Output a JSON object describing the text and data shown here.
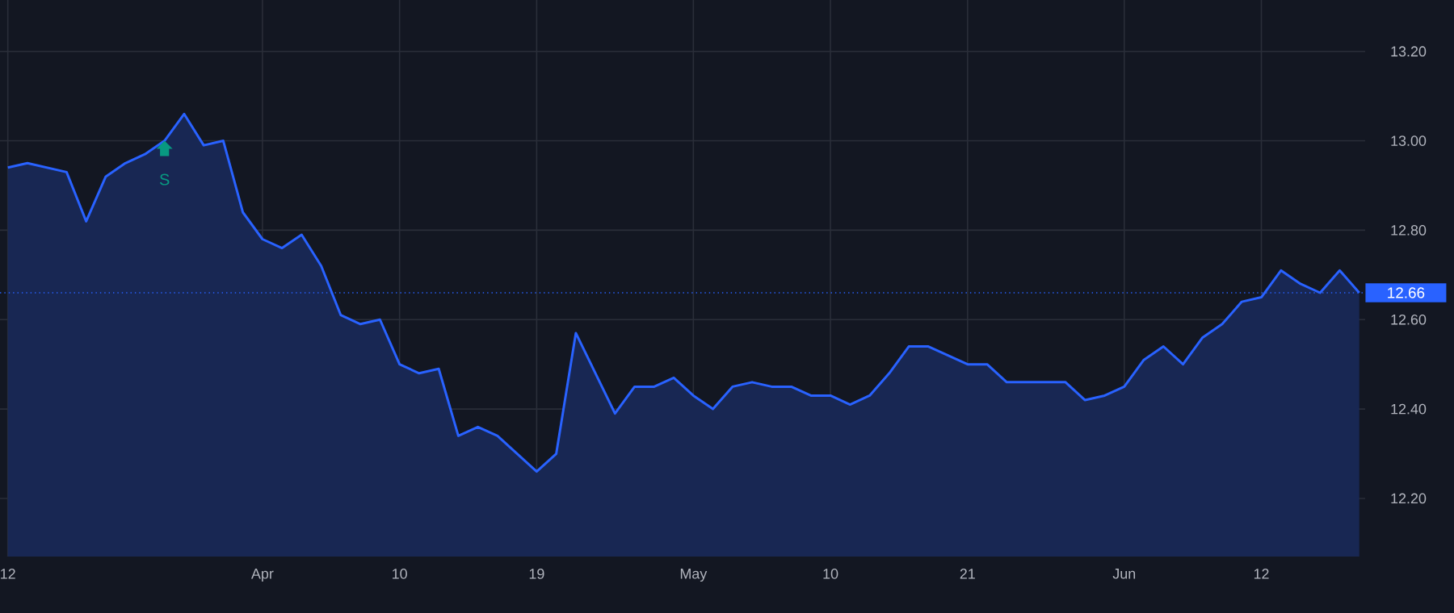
{
  "chart_data": {
    "type": "area",
    "categories": [
      "12",
      null,
      null,
      null,
      null,
      null,
      null,
      null,
      null,
      null,
      null,
      null,
      null,
      "Apr",
      null,
      null,
      null,
      null,
      null,
      null,
      "10",
      null,
      null,
      null,
      null,
      null,
      null,
      "19",
      null,
      null,
      null,
      null,
      null,
      null,
      null,
      "May",
      null,
      null,
      null,
      null,
      null,
      null,
      "10",
      null,
      null,
      null,
      null,
      null,
      null,
      "21",
      null,
      null,
      null,
      null,
      null,
      null,
      null,
      "Jun",
      null,
      null,
      null,
      null,
      null,
      null,
      "12",
      null,
      null,
      null,
      null,
      null
    ],
    "series": [
      {
        "color": "#2962ff",
        "values": [
          12.94,
          12.95,
          null,
          12.93,
          12.82,
          12.92,
          12.95,
          12.97,
          13.0,
          13.06,
          12.99,
          13.0,
          12.84,
          12.78,
          12.76,
          12.79,
          12.72,
          12.61,
          12.59,
          12.6,
          12.5,
          12.48,
          12.49,
          12.34,
          12.36,
          12.34,
          null,
          12.26,
          12.3,
          12.57,
          null,
          12.39,
          12.45,
          12.45,
          12.47,
          12.43,
          12.4,
          12.45,
          12.46,
          12.45,
          12.45,
          12.43,
          12.43,
          12.41,
          12.43,
          12.48,
          12.54,
          12.54,
          12.52,
          12.5,
          12.5,
          12.46,
          12.46,
          12.46,
          12.46,
          12.42,
          12.43,
          12.45,
          12.51,
          12.54,
          12.5,
          12.56,
          12.59,
          12.64,
          12.65,
          12.71,
          12.68,
          12.66,
          12.71,
          12.66
        ]
      }
    ],
    "ylim": [
      12.07,
      13.315
    ],
    "yticks": [
      {
        "value": 12.2,
        "label": "12.20"
      },
      {
        "value": 12.4,
        "label": "12.40"
      },
      {
        "value": 12.6,
        "label": "12.60"
      },
      {
        "value": 12.8,
        "label": "12.80"
      },
      {
        "value": 13.0,
        "label": "13.00"
      },
      {
        "value": 13.2,
        "label": "13.20"
      }
    ],
    "grid": true,
    "marker": "none",
    "line_style": "solid",
    "ref_lines": [
      {
        "axis": "y",
        "value": 12.66,
        "label": "12.66",
        "color": "#2962ff",
        "line_style": "dotted"
      }
    ],
    "annotations": [
      {
        "text": "S",
        "y": 13.0
      }
    ]
  }
}
